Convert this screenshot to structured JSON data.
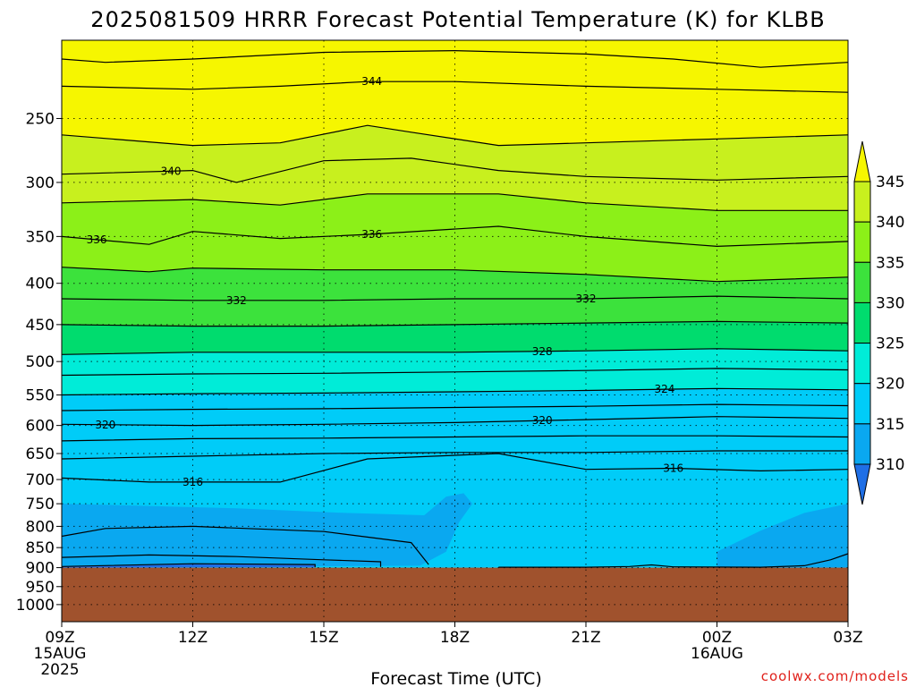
{
  "chart_data": {
    "type": "contour",
    "title": "2025081509 HRRR Forecast Potential Temperature (K) for KLBB",
    "xlabel": "Forecast Time (UTC)",
    "ylabel": "",
    "x_ticks": [
      {
        "hour": 0,
        "label": "09Z",
        "sub": [
          "15AUG",
          "2025"
        ]
      },
      {
        "hour": 3,
        "label": "12Z",
        "sub": []
      },
      {
        "hour": 6,
        "label": "15Z",
        "sub": []
      },
      {
        "hour": 9,
        "label": "18Z",
        "sub": []
      },
      {
        "hour": 12,
        "label": "21Z",
        "sub": []
      },
      {
        "hour": 15,
        "label": "00Z",
        "sub": [
          "16AUG"
        ]
      },
      {
        "hour": 18,
        "label": "03Z",
        "sub": []
      }
    ],
    "y_scale": "log",
    "y_reversed": true,
    "y_range": [
      1050,
      200
    ],
    "y_ticks": [
      250,
      300,
      350,
      400,
      450,
      500,
      550,
      600,
      650,
      700,
      750,
      800,
      850,
      900,
      950,
      1000
    ],
    "surface_pressure": 900,
    "colorbar": {
      "levels": [
        310,
        315,
        320,
        325,
        330,
        335,
        340,
        345
      ],
      "labels": [
        "310",
        "315",
        "320",
        "325",
        "330",
        "335",
        "340",
        "345"
      ],
      "colors": [
        "#1f6fe6",
        "#0aa8f0",
        "#00ccf8",
        "#00ecd8",
        "#00dc6e",
        "#3ce23c",
        "#8cf018",
        "#c8f01e",
        "#f6f600"
      ]
    },
    "fill_colors": {
      "ground": "#a0522d"
    },
    "contour_lines": [
      {
        "theta": 316,
        "label": "316",
        "points": [
          [
            0,
            697
          ],
          [
            2,
            705
          ],
          [
            5,
            705
          ],
          [
            7,
            660
          ],
          [
            10,
            650
          ],
          [
            12,
            680
          ],
          [
            14,
            678
          ],
          [
            16,
            683
          ],
          [
            18,
            680
          ]
        ]
      },
      {
        "theta": 318,
        "points": [
          [
            0,
            660
          ],
          [
            3,
            655
          ],
          [
            6,
            650
          ],
          [
            9,
            648
          ],
          [
            12,
            648
          ],
          [
            15,
            645
          ],
          [
            18,
            645
          ]
        ]
      },
      {
        "theta": 319,
        "points": [
          [
            0,
            627
          ],
          [
            3,
            623
          ],
          [
            6,
            622
          ],
          [
            9,
            620
          ],
          [
            12,
            618
          ],
          [
            15,
            618
          ],
          [
            18,
            620
          ]
        ]
      },
      {
        "theta": 320,
        "label": "320",
        "points": [
          [
            0,
            598
          ],
          [
            3,
            600
          ],
          [
            6,
            598
          ],
          [
            9,
            595
          ],
          [
            12,
            590
          ],
          [
            15,
            585
          ],
          [
            18,
            588
          ]
        ]
      },
      {
        "theta": 322,
        "points": [
          [
            0,
            575
          ],
          [
            3,
            573
          ],
          [
            6,
            572
          ],
          [
            9,
            570
          ],
          [
            12,
            568
          ],
          [
            15,
            565
          ],
          [
            18,
            567
          ]
        ]
      },
      {
        "theta": 324,
        "label": "324",
        "points": [
          [
            0,
            550
          ],
          [
            3,
            548
          ],
          [
            6,
            547
          ],
          [
            9,
            545
          ],
          [
            12,
            543
          ],
          [
            15,
            540
          ],
          [
            18,
            542
          ]
        ]
      },
      {
        "theta": 326,
        "points": [
          [
            0,
            520
          ],
          [
            3,
            518
          ],
          [
            6,
            517
          ],
          [
            9,
            515
          ],
          [
            12,
            513
          ],
          [
            15,
            510
          ],
          [
            18,
            512
          ]
        ]
      },
      {
        "theta": 328,
        "label": "328",
        "points": [
          [
            0,
            490
          ],
          [
            3,
            487
          ],
          [
            6,
            487
          ],
          [
            9,
            487
          ],
          [
            12,
            485
          ],
          [
            15,
            482
          ],
          [
            18,
            485
          ]
        ]
      },
      {
        "theta": 330,
        "points": [
          [
            0,
            450
          ],
          [
            3,
            452
          ],
          [
            6,
            452
          ],
          [
            9,
            450
          ],
          [
            12,
            448
          ],
          [
            15,
            446
          ],
          [
            18,
            448
          ]
        ]
      },
      {
        "theta": 332,
        "label": "332",
        "points": [
          [
            0,
            418
          ],
          [
            3,
            420
          ],
          [
            6,
            420
          ],
          [
            9,
            418
          ],
          [
            12,
            418
          ],
          [
            15,
            415
          ],
          [
            18,
            418
          ]
        ]
      },
      {
        "theta": 334,
        "points": [
          [
            0,
            382
          ],
          [
            2,
            387
          ],
          [
            3,
            383
          ],
          [
            6,
            385
          ],
          [
            9,
            385
          ],
          [
            12,
            390
          ],
          [
            15,
            398
          ],
          [
            18,
            393
          ]
        ]
      },
      {
        "theta": 336,
        "label": "336",
        "points": [
          [
            0,
            350
          ],
          [
            2,
            358
          ],
          [
            3,
            345
          ],
          [
            5,
            352
          ],
          [
            7,
            348
          ],
          [
            10,
            340
          ],
          [
            12,
            350
          ],
          [
            15,
            360
          ],
          [
            18,
            355
          ]
        ]
      },
      {
        "theta": 338,
        "points": [
          [
            0,
            318
          ],
          [
            3,
            315
          ],
          [
            5,
            320
          ],
          [
            7,
            310
          ],
          [
            10,
            310
          ],
          [
            12,
            318
          ],
          [
            15,
            325
          ],
          [
            18,
            325
          ]
        ]
      },
      {
        "theta": 340,
        "label": "340",
        "points": [
          [
            0,
            293
          ],
          [
            3,
            290
          ],
          [
            4,
            300
          ],
          [
            6,
            282
          ],
          [
            8,
            280
          ],
          [
            10,
            290
          ],
          [
            12,
            295
          ],
          [
            15,
            298
          ],
          [
            18,
            295
          ]
        ]
      },
      {
        "theta": 342,
        "points": [
          [
            0,
            262
          ],
          [
            3,
            270
          ],
          [
            5,
            268
          ],
          [
            7,
            255
          ],
          [
            8,
            260
          ],
          [
            10,
            270
          ],
          [
            12,
            268
          ],
          [
            15,
            265
          ],
          [
            18,
            262
          ]
        ]
      },
      {
        "theta": 344,
        "label": "344",
        "points": [
          [
            0,
            228
          ],
          [
            3,
            230
          ],
          [
            5,
            228
          ],
          [
            7,
            225
          ],
          [
            9,
            225
          ],
          [
            12,
            228
          ],
          [
            15,
            230
          ],
          [
            18,
            232
          ]
        ]
      },
      {
        "theta": 346,
        "points": [
          [
            0,
            211
          ],
          [
            1,
            213
          ],
          [
            3,
            211
          ],
          [
            6,
            207
          ],
          [
            9,
            206
          ],
          [
            12,
            208
          ],
          [
            14,
            211
          ],
          [
            16,
            216
          ],
          [
            18,
            213
          ]
        ]
      },
      {
        "theta": 314,
        "points": [
          [
            0,
            823
          ],
          [
            1,
            805
          ],
          [
            3,
            800
          ],
          [
            6,
            812
          ],
          [
            8,
            838
          ],
          [
            8.4,
            892
          ]
        ]
      },
      {
        "theta": 312,
        "points": [
          [
            0,
            874
          ],
          [
            2,
            868
          ],
          [
            4,
            872
          ],
          [
            6,
            880
          ],
          [
            7.3,
            885
          ],
          [
            7.3,
            898
          ]
        ]
      },
      {
        "theta": 310,
        "points": [
          [
            0,
            897
          ],
          [
            3,
            890
          ],
          [
            5.8,
            892
          ],
          [
            5.8,
            899
          ]
        ]
      },
      {
        "theta": 312,
        "points": [
          [
            10,
            899
          ],
          [
            12,
            899
          ],
          [
            13,
            897
          ],
          [
            13.5,
            893
          ],
          [
            14,
            898
          ],
          [
            16,
            899
          ],
          [
            17,
            895
          ],
          [
            17.6,
            880
          ],
          [
            18,
            865
          ]
        ]
      }
    ]
  },
  "credit": "coolwx.com/models"
}
